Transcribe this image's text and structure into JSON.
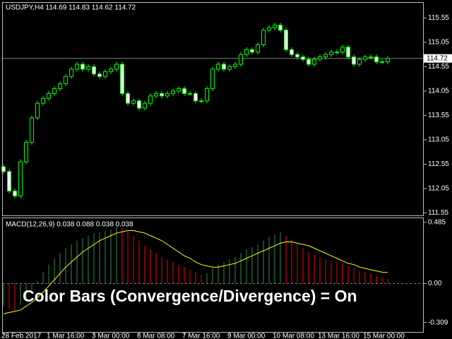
{
  "chart_data": [
    {
      "type": "candlestick",
      "title": "USDJPY,H4  114.69 114.83 114.62 114.72",
      "categories": [
        "28 Feb 2017",
        null,
        null,
        null,
        null,
        null,
        null,
        null,
        "1 Mar 16:00",
        null,
        null,
        null,
        null,
        null,
        null,
        null,
        "3 Mar 00:00",
        null,
        null,
        null,
        null,
        null,
        null,
        null,
        "6 Mar 08:00",
        null,
        null,
        null,
        null,
        null,
        null,
        null,
        "7 Mar 16:00",
        null,
        null,
        null,
        null,
        null,
        null,
        null,
        "9 Mar 00:00",
        null,
        null,
        null,
        null,
        null,
        null,
        null,
        "10 Mar 08:00",
        null,
        null,
        null,
        null,
        null,
        null,
        null,
        "13 Mar 16:00",
        null,
        null,
        null,
        null,
        null,
        null,
        null,
        "15 Mar 00:00",
        null,
        null,
        null,
        null
      ],
      "open": [
        112.5,
        112.4,
        112.0,
        111.9,
        112.6,
        113.0,
        113.5,
        113.8,
        113.9,
        114.0,
        114.1,
        114.2,
        114.35,
        114.5,
        114.6,
        114.5,
        114.55,
        114.4,
        114.35,
        114.45,
        114.5,
        114.6,
        114.0,
        113.8,
        113.85,
        113.7,
        113.8,
        113.95,
        114.0,
        113.95,
        114.0,
        114.05,
        114.1,
        114.0,
        114.0,
        113.85,
        113.85,
        114.1,
        114.5,
        114.6,
        114.5,
        114.55,
        114.6,
        114.8,
        114.9,
        114.85,
        115.0,
        115.3,
        115.35,
        115.4,
        115.3,
        114.9,
        114.8,
        114.75,
        114.7,
        114.6,
        114.7,
        114.75,
        114.8,
        114.85,
        114.85,
        114.95,
        114.75,
        114.6,
        114.7,
        114.75,
        114.75,
        114.65,
        114.65
      ],
      "high": [
        112.55,
        112.45,
        112.05,
        112.65,
        113.05,
        113.55,
        113.85,
        113.95,
        114.05,
        114.15,
        114.25,
        114.4,
        114.55,
        114.65,
        114.65,
        114.6,
        114.6,
        114.45,
        114.5,
        114.55,
        114.65,
        114.65,
        114.05,
        113.9,
        113.9,
        113.85,
        114.0,
        114.05,
        114.05,
        114.05,
        114.1,
        114.15,
        114.15,
        114.05,
        114.05,
        113.9,
        114.15,
        114.55,
        114.65,
        114.65,
        114.6,
        114.65,
        114.85,
        114.95,
        114.95,
        115.05,
        115.35,
        115.4,
        115.45,
        115.45,
        115.35,
        114.95,
        114.85,
        114.8,
        114.75,
        114.75,
        114.8,
        114.85,
        114.9,
        114.9,
        115.0,
        115.0,
        114.8,
        114.75,
        114.8,
        114.8,
        114.8,
        114.7,
        114.77
      ],
      "low": [
        112.35,
        111.95,
        111.85,
        111.85,
        112.55,
        112.95,
        113.45,
        113.75,
        113.85,
        113.95,
        114.05,
        114.15,
        114.3,
        114.45,
        114.45,
        114.45,
        114.35,
        114.3,
        114.3,
        114.4,
        114.45,
        113.95,
        113.75,
        113.75,
        113.65,
        113.65,
        113.75,
        113.9,
        113.9,
        113.9,
        113.95,
        114.0,
        113.95,
        113.95,
        113.8,
        113.8,
        113.8,
        114.05,
        114.45,
        114.45,
        114.45,
        114.5,
        114.55,
        114.75,
        114.8,
        114.8,
        114.95,
        115.25,
        115.3,
        115.25,
        114.85,
        114.75,
        114.7,
        114.65,
        114.55,
        114.55,
        114.65,
        114.7,
        114.75,
        114.8,
        114.8,
        114.7,
        114.55,
        114.55,
        114.65,
        114.7,
        114.6,
        114.6,
        114.6
      ],
      "close": [
        112.4,
        112.0,
        111.9,
        112.6,
        113.0,
        113.5,
        113.8,
        113.9,
        114.0,
        114.1,
        114.2,
        114.35,
        114.5,
        114.6,
        114.5,
        114.55,
        114.4,
        114.35,
        114.45,
        114.5,
        114.6,
        114.0,
        113.8,
        113.85,
        113.7,
        113.8,
        113.95,
        114.0,
        113.95,
        114.0,
        114.05,
        114.1,
        114.0,
        114.0,
        113.85,
        113.85,
        114.1,
        114.5,
        114.6,
        114.5,
        114.55,
        114.6,
        114.8,
        114.9,
        114.85,
        115.0,
        115.3,
        115.35,
        115.4,
        115.3,
        114.9,
        114.8,
        114.75,
        114.7,
        114.6,
        114.7,
        114.75,
        114.8,
        114.85,
        114.85,
        114.95,
        114.75,
        114.6,
        114.7,
        114.75,
        114.75,
        114.65,
        114.65,
        114.72
      ],
      "current_price": 114.72,
      "color": "#00ff00",
      "ylim": [
        111.5,
        115.86
      ],
      "yticks": [
        111.55,
        112.05,
        112.55,
        113.05,
        113.55,
        114.05,
        114.55,
        115.05,
        115.55
      ]
    },
    {
      "type": "macd",
      "title": "MACD(12,26,9) 0.038 0.088 0.038 0.038",
      "annotation": "Color Bars (Convergence/Divergence) = On",
      "values": [
        -0.18,
        -0.2,
        -0.21,
        -0.17,
        -0.12,
        -0.05,
        0.02,
        0.09,
        0.15,
        0.2,
        0.24,
        0.28,
        0.31,
        0.34,
        0.36,
        0.38,
        0.4,
        0.41,
        0.42,
        0.43,
        0.45,
        0.44,
        0.41,
        0.38,
        0.34,
        0.3,
        0.27,
        0.24,
        0.21,
        0.19,
        0.17,
        0.15,
        0.13,
        0.11,
        0.09,
        0.07,
        0.08,
        0.12,
        0.15,
        0.17,
        0.19,
        0.21,
        0.24,
        0.27,
        0.29,
        0.31,
        0.34,
        0.37,
        0.39,
        0.41,
        0.38,
        0.35,
        0.31,
        0.28,
        0.25,
        0.23,
        0.21,
        0.19,
        0.18,
        0.17,
        0.16,
        0.14,
        0.12,
        0.1,
        0.09,
        0.08,
        0.06,
        0.05,
        0.038
      ],
      "signal": [
        -0.24,
        -0.23,
        -0.22,
        -0.21,
        -0.18,
        -0.15,
        -0.11,
        -0.07,
        -0.02,
        0.03,
        0.08,
        0.13,
        0.17,
        0.21,
        0.25,
        0.28,
        0.31,
        0.34,
        0.36,
        0.38,
        0.4,
        0.41,
        0.42,
        0.42,
        0.41,
        0.4,
        0.38,
        0.36,
        0.34,
        0.31,
        0.28,
        0.25,
        0.22,
        0.2,
        0.17,
        0.15,
        0.14,
        0.13,
        0.13,
        0.14,
        0.15,
        0.16,
        0.18,
        0.2,
        0.22,
        0.24,
        0.26,
        0.28,
        0.3,
        0.32,
        0.33,
        0.33,
        0.32,
        0.31,
        0.3,
        0.28,
        0.26,
        0.24,
        0.22,
        0.2,
        0.18,
        0.16,
        0.15,
        0.13,
        0.12,
        0.11,
        0.1,
        0.09,
        0.088
      ],
      "up_color": "#2e8b57",
      "down_color": "#ff0000",
      "signal_color": "#ffff00",
      "ylim": [
        -0.384,
        0.518
      ],
      "yticks": [
        -0.309,
        {
          "value": 0,
          "label": "0.00"
        },
        0.485
      ]
    }
  ]
}
